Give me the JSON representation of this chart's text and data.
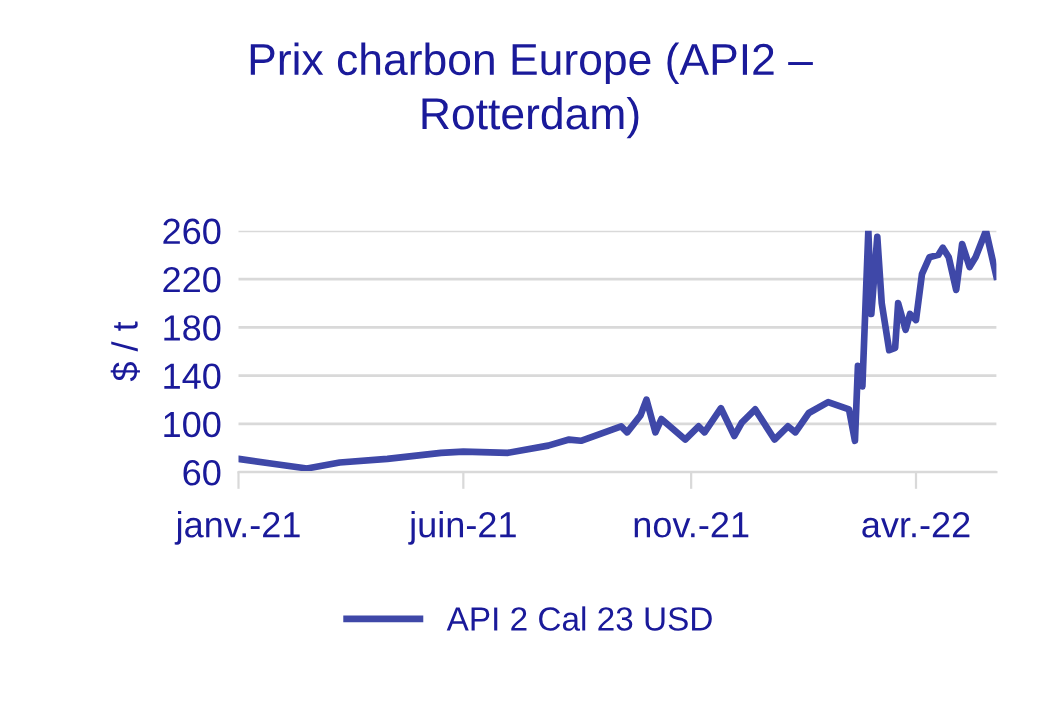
{
  "chart_data": {
    "type": "line",
    "title": "Prix charbon Europe (API2 –\nRotterdam)",
    "ylabel": "$ / t",
    "x": [
      "2021-01-01",
      "2021-01-24",
      "2021-02-16",
      "2021-03-10",
      "2021-04-11",
      "2021-05-17",
      "2021-06-01",
      "2021-07-01",
      "2021-07-28",
      "2021-08-11",
      "2021-08-19",
      "2021-09-15",
      "2021-09-19",
      "2021-09-28",
      "2021-10-02",
      "2021-10-08",
      "2021-10-12",
      "2021-10-28",
      "2021-11-06",
      "2021-11-10",
      "2021-11-21",
      "2021-11-30",
      "2021-12-05",
      "2021-12-14",
      "2021-12-27",
      "2022-01-05",
      "2022-01-10",
      "2022-01-19",
      "2022-02-01",
      "2022-02-15",
      "2022-02-19",
      "2022-02-21",
      "2022-02-24",
      "2022-02-28",
      "2022-03-02",
      "2022-03-06",
      "2022-03-09",
      "2022-03-14",
      "2022-03-18",
      "2022-03-20",
      "2022-03-25",
      "2022-03-28",
      "2022-04-01",
      "2022-04-05",
      "2022-04-10",
      "2022-04-16",
      "2022-04-19",
      "2022-04-23",
      "2022-04-28",
      "2022-05-02",
      "2022-05-07",
      "2022-05-11",
      "2022-05-18",
      "2022-05-25"
    ],
    "series": [
      {
        "name": "API 2 Cal 23 USD",
        "color": "#3f48a8",
        "values": [
          71,
          67,
          63,
          68,
          71,
          76,
          77,
          76,
          82,
          87,
          86,
          98,
          93,
          107,
          120,
          93,
          104,
          87,
          98,
          93,
          113,
          90,
          101,
          112,
          87,
          98,
          93,
          109,
          118,
          112,
          86,
          148,
          131,
          260,
          191,
          255,
          200,
          161,
          163,
          200,
          178,
          191,
          186,
          224,
          238,
          240,
          246,
          238,
          211,
          249,
          230,
          238,
          260,
          222
        ]
      }
    ],
    "xlim": [
      "2021-01-01",
      "2022-05-25"
    ],
    "ylim": [
      60,
      260
    ],
    "yticks": [
      60,
      100,
      140,
      180,
      220,
      260
    ],
    "xticks": [
      {
        "value": "2021-01-01",
        "label": "janv.-21"
      },
      {
        "value": "2021-06-01",
        "label": "juin-21"
      },
      {
        "value": "2021-11-01",
        "label": "nov.-21"
      },
      {
        "value": "2022-04-01",
        "label": "avr.-22"
      }
    ],
    "grid": "y",
    "legend": "bottom",
    "line_style": "solid",
    "marker": "none"
  }
}
